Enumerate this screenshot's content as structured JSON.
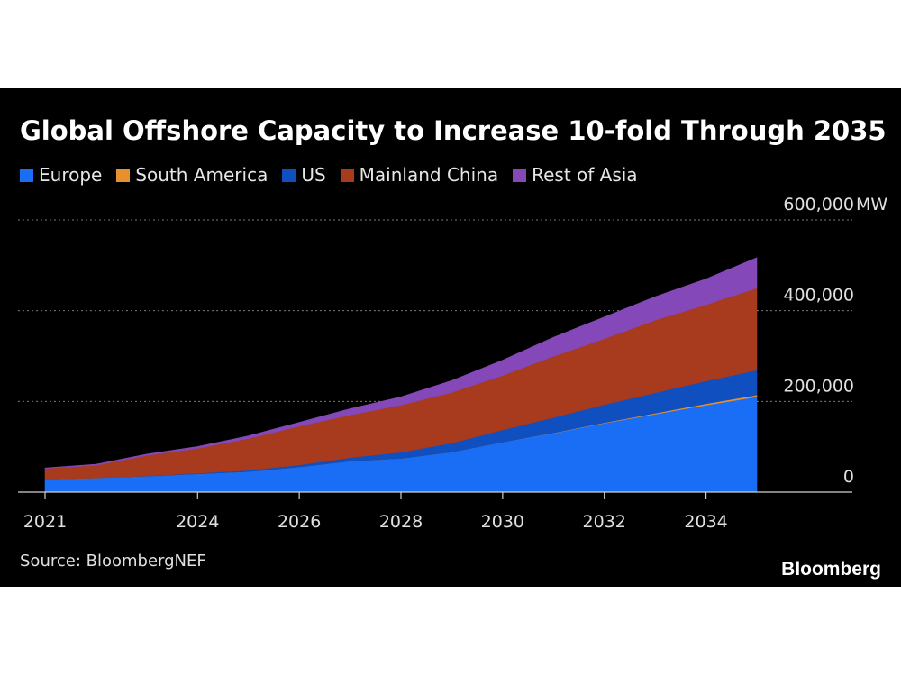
{
  "chart_data": {
    "type": "area",
    "stacked": true,
    "title": "Global Offshore Capacity to Increase 10-fold Through 2035",
    "ylabel_unit": "MW",
    "x": [
      2021,
      2022,
      2023,
      2024,
      2025,
      2026,
      2027,
      2028,
      2029,
      2030,
      2031,
      2032,
      2033,
      2034,
      2035
    ],
    "xticks": [
      "2021",
      "2024",
      "2026",
      "2028",
      "2030",
      "2032",
      "2034"
    ],
    "ylim": [
      0,
      600000
    ],
    "yticks": [
      {
        "value": 0,
        "label": "0"
      },
      {
        "value": 200000,
        "label": "200,000"
      },
      {
        "value": 400000,
        "label": "400,000"
      },
      {
        "value": 600000,
        "label": "600,000"
      }
    ],
    "grid": true,
    "legend_position": "top-left",
    "series": [
      {
        "name": "Europe",
        "color": "#1a6ef5",
        "values": [
          28000,
          31000,
          35000,
          40000,
          45000,
          55000,
          68000,
          74000,
          88000,
          110000,
          130000,
          152000,
          172000,
          192000,
          210000
        ]
      },
      {
        "name": "South America",
        "color": "#e8902f",
        "values": [
          0,
          0,
          0,
          0,
          0,
          0,
          0,
          0,
          0,
          0,
          500,
          1000,
          2000,
          3000,
          4000
        ]
      },
      {
        "name": "US",
        "color": "#0f4fbf",
        "values": [
          200,
          300,
          800,
          1500,
          3000,
          5000,
          8000,
          14000,
          20000,
          27000,
          34000,
          40000,
          45000,
          50000,
          55000
        ]
      },
      {
        "name": "Mainland China",
        "color": "#a83a1e",
        "values": [
          24000,
          28000,
          45000,
          55000,
          70000,
          85000,
          94000,
          104000,
          112000,
          120000,
          135000,
          145000,
          160000,
          168000,
          181000
        ]
      },
      {
        "name": "Rest of Asia",
        "color": "#8448b8",
        "values": [
          1000,
          2000,
          3000,
          4000,
          6000,
          9000,
          14000,
          18000,
          26000,
          34000,
          42000,
          48000,
          52000,
          57000,
          67000
        ]
      }
    ],
    "source": "Source: BloombergNEF",
    "brand": "Bloomberg"
  }
}
